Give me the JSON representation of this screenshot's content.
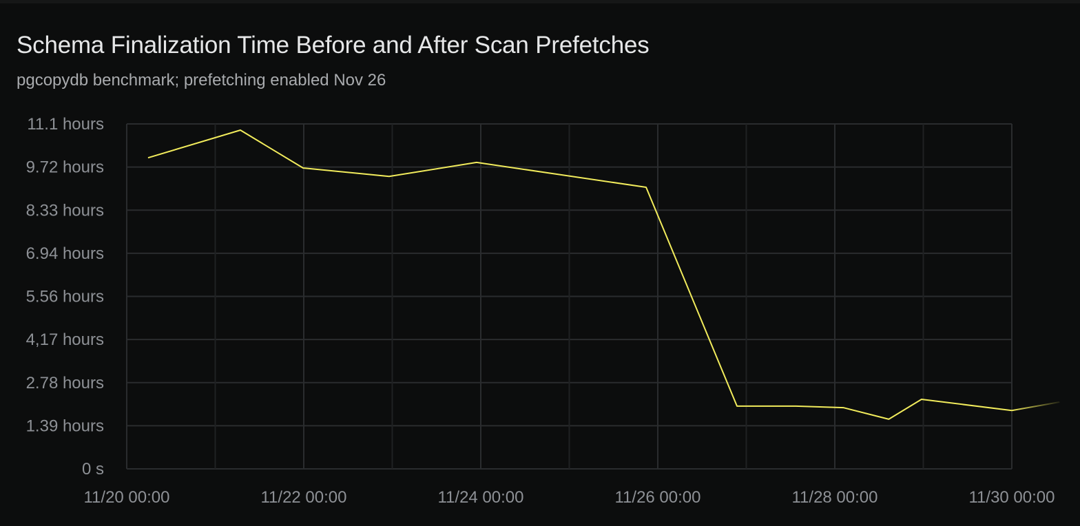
{
  "header": {
    "title": "Schema Finalization Time Before and After Scan Prefetches",
    "subtitle": "pgcopydb benchmark; prefetching enabled Nov 26"
  },
  "chart_data": {
    "type": "line",
    "title": "Schema Finalization Time Before and After Scan Prefetches",
    "subtitle": "pgcopydb benchmark; prefetching enabled Nov 26",
    "xlabel": "",
    "ylabel": "",
    "x_range": [
      "2023-11-20T00:00",
      "2023-11-30T00:00"
    ],
    "ylim_hours": [
      0,
      11.11
    ],
    "grid": true,
    "y_tick_labels": [
      "0 s",
      "1.39 hours",
      "2.78 hours",
      "4,17 hours",
      "5.56 hours",
      "6.94 hours",
      "8.33 hours",
      "9.72 hours",
      "11.1 hours"
    ],
    "x_tick_labels": [
      "11/20 00:00",
      "11/22 00:00",
      "11/24 00:00",
      "11/26 00:00",
      "11/28 00:00",
      "11/30 00:00"
    ],
    "series": [
      {
        "color": "#f2ec5c",
        "unit": "hours",
        "points": [
          {
            "x": "2023-11-20T05:47",
            "y": 10.02
          },
          {
            "x": "2023-11-21T06:49",
            "y": 10.91
          },
          {
            "x": "2023-11-21T23:49",
            "y": 9.69
          },
          {
            "x": "2023-11-22T23:09",
            "y": 9.42
          },
          {
            "x": "2023-11-23T22:52",
            "y": 9.87
          },
          {
            "x": "2023-11-25T20:50",
            "y": 9.07
          },
          {
            "x": "2023-11-26T21:29",
            "y": 2.02
          },
          {
            "x": "2023-11-27T13:26",
            "y": 2.02
          },
          {
            "x": "2023-11-28T02:24",
            "y": 1.97
          },
          {
            "x": "2023-11-28T14:38",
            "y": 1.6
          },
          {
            "x": "2023-11-28T23:31",
            "y": 2.24
          },
          {
            "x": "2023-11-30T00:00",
            "y": 1.88
          },
          {
            "x": "2023-11-30T12:55",
            "y": 2.15
          }
        ]
      }
    ]
  }
}
